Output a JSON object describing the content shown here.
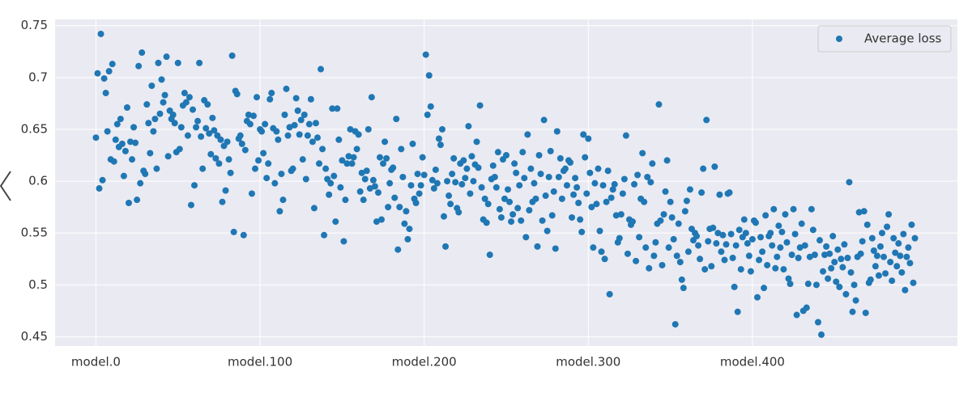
{
  "chart_data": {
    "type": "scatter",
    "color": "#1f77b4",
    "grid": true,
    "legend": "upper right",
    "xlim": [
      -24.9,
      524.9
    ],
    "ylim": [
      0.441,
      0.756
    ],
    "xticks": [
      {
        "value": 0,
        "label": "model.0"
      },
      {
        "value": 100,
        "label": "model.100"
      },
      {
        "value": 200,
        "label": "model.200"
      },
      {
        "value": 300,
        "label": "model.300"
      },
      {
        "value": 400,
        "label": "model.400"
      }
    ],
    "yticks": [
      0.45,
      0.5,
      0.55,
      0.6,
      0.65,
      0.7,
      0.75
    ],
    "series": [
      {
        "name": "Average loss",
        "color": "#1f77b4",
        "x": [
          0,
          1,
          2,
          3,
          4,
          5,
          6,
          7,
          8,
          9,
          10,
          11,
          12,
          13,
          14,
          15,
          16,
          17,
          18,
          19,
          20,
          21,
          22,
          23,
          24,
          25,
          26,
          27,
          28,
          29,
          30,
          31,
          32,
          33,
          34,
          35,
          36,
          37,
          38,
          39,
          40,
          41,
          42,
          43,
          44,
          45,
          46,
          47,
          48,
          49,
          50,
          51,
          52,
          53,
          54,
          55,
          56,
          57,
          58,
          59,
          60,
          61,
          62,
          63,
          64,
          65,
          66,
          67,
          68,
          69,
          70,
          71,
          72,
          73,
          74,
          75,
          76,
          77,
          78,
          79,
          80,
          81,
          82,
          83,
          84,
          85,
          86,
          87,
          88,
          89,
          90,
          91,
          92,
          93,
          94,
          95,
          96,
          97,
          98,
          99,
          100,
          101,
          102,
          103,
          104,
          105,
          106,
          107,
          108,
          109,
          110,
          111,
          112,
          113,
          114,
          115,
          116,
          117,
          118,
          119,
          120,
          121,
          122,
          123,
          124,
          125,
          126,
          127,
          128,
          129,
          130,
          131,
          132,
          133,
          134,
          135,
          136,
          137,
          138,
          139,
          140,
          141,
          142,
          143,
          144,
          145,
          146,
          147,
          148,
          149,
          150,
          151,
          152,
          153,
          154,
          155,
          156,
          157,
          158,
          159,
          160,
          161,
          162,
          163,
          164,
          165,
          166,
          167,
          168,
          169,
          170,
          171,
          172,
          173,
          174,
          175,
          176,
          177,
          178,
          179,
          180,
          181,
          182,
          183,
          184,
          185,
          186,
          187,
          188,
          189,
          190,
          191,
          192,
          193,
          194,
          195,
          196,
          197,
          198,
          199,
          200,
          201,
          202,
          203,
          204,
          205,
          206,
          207,
          208,
          209,
          210,
          211,
          212,
          213,
          214,
          215,
          216,
          217,
          218,
          219,
          220,
          221,
          222,
          223,
          224,
          225,
          226,
          227,
          228,
          229,
          230,
          231,
          232,
          233,
          234,
          235,
          236,
          237,
          238,
          239,
          240,
          241,
          242,
          243,
          244,
          245,
          246,
          247,
          248,
          249,
          250,
          251,
          252,
          253,
          254,
          255,
          256,
          257,
          258,
          259,
          260,
          261,
          262,
          263,
          264,
          265,
          266,
          267,
          268,
          269,
          270,
          271,
          272,
          273,
          274,
          275,
          276,
          277,
          278,
          279,
          280,
          281,
          282,
          283,
          284,
          285,
          286,
          287,
          288,
          289,
          290,
          291,
          292,
          293,
          294,
          295,
          296,
          297,
          298,
          299,
          300,
          301,
          302,
          303,
          304,
          305,
          306,
          307,
          308,
          309,
          310,
          311,
          312,
          313,
          314,
          315,
          316,
          317,
          318,
          319,
          320,
          321,
          322,
          323,
          324,
          325,
          326,
          327,
          328,
          329,
          330,
          331,
          332,
          333,
          334,
          335,
          336,
          337,
          338,
          339,
          340,
          341,
          342,
          343,
          344,
          345,
          346,
          347,
          348,
          349,
          350,
          351,
          352,
          353,
          354,
          355,
          356,
          357,
          358,
          359,
          360,
          361,
          362,
          363,
          364,
          365,
          366,
          367,
          368,
          369,
          370,
          371,
          372,
          373,
          374,
          375,
          376,
          377,
          378,
          379,
          380,
          381,
          382,
          383,
          384,
          385,
          386,
          387,
          388,
          389,
          390,
          391,
          392,
          393,
          394,
          395,
          396,
          397,
          398,
          399,
          400,
          401,
          402,
          403,
          404,
          405,
          406,
          407,
          408,
          409,
          410,
          411,
          412,
          413,
          414,
          415,
          416,
          417,
          418,
          419,
          420,
          421,
          422,
          423,
          424,
          425,
          426,
          427,
          428,
          429,
          430,
          431,
          432,
          433,
          434,
          435,
          436,
          437,
          438,
          439,
          440,
          441,
          442,
          443,
          444,
          445,
          446,
          447,
          448,
          449,
          450,
          451,
          452,
          453,
          454,
          455,
          456,
          457,
          458,
          459,
          460,
          461,
          462,
          463,
          464,
          465,
          466,
          467,
          468,
          469,
          470,
          471,
          472,
          473,
          474,
          475,
          476,
          477,
          478,
          479,
          480,
          481,
          482,
          483,
          484,
          485,
          486,
          487,
          488,
          489,
          490,
          491,
          492,
          493,
          494,
          495,
          496,
          497,
          498,
          499
        ],
        "values": [
          0.642,
          0.704,
          0.593,
          0.742,
          0.601,
          0.699,
          0.685,
          0.648,
          0.706,
          0.621,
          0.713,
          0.619,
          0.64,
          0.655,
          0.633,
          0.66,
          0.636,
          0.605,
          0.629,
          0.671,
          0.579,
          0.638,
          0.621,
          0.652,
          0.637,
          0.582,
          0.711,
          0.598,
          0.724,
          0.61,
          0.607,
          0.674,
          0.656,
          0.627,
          0.692,
          0.648,
          0.66,
          0.612,
          0.714,
          0.665,
          0.698,
          0.676,
          0.683,
          0.72,
          0.624,
          0.668,
          0.66,
          0.664,
          0.656,
          0.628,
          0.714,
          0.631,
          0.652,
          0.673,
          0.685,
          0.676,
          0.644,
          0.681,
          0.577,
          0.669,
          0.596,
          0.652,
          0.658,
          0.714,
          0.643,
          0.612,
          0.678,
          0.651,
          0.674,
          0.646,
          0.626,
          0.661,
          0.649,
          0.622,
          0.644,
          0.617,
          0.64,
          0.58,
          0.634,
          0.591,
          0.638,
          0.621,
          0.608,
          0.721,
          0.551,
          0.687,
          0.684,
          0.641,
          0.644,
          0.636,
          0.548,
          0.63,
          0.658,
          0.664,
          0.655,
          0.588,
          0.663,
          0.612,
          0.681,
          0.62,
          0.65,
          0.648,
          0.627,
          0.655,
          0.603,
          0.617,
          0.679,
          0.685,
          0.651,
          0.598,
          0.648,
          0.64,
          0.571,
          0.607,
          0.582,
          0.664,
          0.689,
          0.644,
          0.652,
          0.61,
          0.612,
          0.654,
          0.68,
          0.668,
          0.645,
          0.659,
          0.621,
          0.664,
          0.602,
          0.644,
          0.655,
          0.679,
          0.638,
          0.574,
          0.656,
          0.642,
          0.617,
          0.708,
          0.631,
          0.548,
          0.612,
          0.602,
          0.587,
          0.598,
          0.67,
          0.605,
          0.561,
          0.67,
          0.64,
          0.594,
          0.62,
          0.542,
          0.582,
          0.617,
          0.624,
          0.65,
          0.617,
          0.623,
          0.648,
          0.631,
          0.645,
          0.59,
          0.608,
          0.582,
          0.602,
          0.61,
          0.65,
          0.593,
          0.681,
          0.601,
          0.595,
          0.561,
          0.589,
          0.623,
          0.563,
          0.617,
          0.638,
          0.622,
          0.575,
          0.598,
          0.611,
          0.613,
          0.584,
          0.66,
          0.534,
          0.575,
          0.631,
          0.604,
          0.559,
          0.571,
          0.544,
          0.554,
          0.596,
          0.636,
          0.583,
          0.579,
          0.607,
          0.588,
          0.596,
          0.623,
          0.606,
          0.722,
          0.664,
          0.702,
          0.672,
          0.601,
          0.593,
          0.611,
          0.598,
          0.641,
          0.635,
          0.65,
          0.566,
          0.537,
          0.6,
          0.586,
          0.578,
          0.607,
          0.622,
          0.599,
          0.574,
          0.57,
          0.617,
          0.597,
          0.62,
          0.603,
          0.612,
          0.653,
          0.588,
          0.624,
          0.6,
          0.616,
          0.638,
          0.613,
          0.673,
          0.594,
          0.563,
          0.583,
          0.56,
          0.578,
          0.529,
          0.602,
          0.615,
          0.604,
          0.594,
          0.628,
          0.573,
          0.565,
          0.621,
          0.583,
          0.625,
          0.592,
          0.58,
          0.561,
          0.568,
          0.617,
          0.608,
          0.574,
          0.596,
          0.562,
          0.628,
          0.603,
          0.546,
          0.645,
          0.572,
          0.612,
          0.58,
          0.598,
          0.583,
          0.537,
          0.625,
          0.607,
          0.562,
          0.659,
          0.586,
          0.552,
          0.604,
          0.629,
          0.567,
          0.59,
          0.535,
          0.648,
          0.604,
          0.622,
          0.583,
          0.61,
          0.612,
          0.596,
          0.62,
          0.618,
          0.565,
          0.587,
          0.603,
          0.594,
          0.579,
          0.563,
          0.551,
          0.645,
          0.623,
          0.588,
          0.641,
          0.608,
          0.575,
          0.536,
          0.598,
          0.578,
          0.612,
          0.552,
          0.532,
          0.596,
          0.525,
          0.58,
          0.61,
          0.491,
          0.584,
          0.592,
          0.597,
          0.567,
          0.541,
          0.545,
          0.568,
          0.588,
          0.602,
          0.644,
          0.53,
          0.563,
          0.558,
          0.561,
          0.597,
          0.523,
          0.606,
          0.546,
          0.583,
          0.627,
          0.58,
          0.536,
          0.604,
          0.516,
          0.599,
          0.617,
          0.528,
          0.541,
          0.559,
          0.674,
          0.562,
          0.519,
          0.568,
          0.59,
          0.62,
          0.536,
          0.58,
          0.565,
          0.544,
          0.462,
          0.528,
          0.559,
          0.522,
          0.505,
          0.497,
          0.571,
          0.581,
          0.532,
          0.592,
          0.554,
          0.543,
          0.55,
          0.547,
          0.538,
          0.525,
          0.589,
          0.612,
          0.515,
          0.659,
          0.542,
          0.554,
          0.518,
          0.555,
          0.614,
          0.54,
          0.55,
          0.587,
          0.532,
          0.548,
          0.524,
          0.539,
          0.588,
          0.589,
          0.549,
          0.526,
          0.498,
          0.538,
          0.474,
          0.553,
          0.515,
          0.546,
          0.563,
          0.55,
          0.54,
          0.528,
          0.513,
          0.544,
          0.562,
          0.56,
          0.488,
          0.524,
          0.546,
          0.532,
          0.497,
          0.567,
          0.519,
          0.547,
          0.55,
          0.538,
          0.573,
          0.516,
          0.527,
          0.557,
          0.536,
          0.551,
          0.515,
          0.568,
          0.541,
          0.506,
          0.501,
          0.529,
          0.573,
          0.549,
          0.471,
          0.526,
          0.536,
          0.559,
          0.475,
          0.538,
          0.478,
          0.501,
          0.527,
          0.573,
          0.553,
          0.529,
          0.5,
          0.464,
          0.543,
          0.452,
          0.513,
          0.529,
          0.537,
          0.506,
          0.53,
          0.516,
          0.547,
          0.522,
          0.503,
          0.534,
          0.498,
          0.525,
          0.517,
          0.539,
          0.491,
          0.526,
          0.599,
          0.512,
          0.474,
          0.5,
          0.485,
          0.527,
          0.57,
          0.53,
          0.542,
          0.571,
          0.473,
          0.558,
          0.502,
          0.505,
          0.545,
          0.533,
          0.518,
          0.528,
          0.509,
          0.537,
          0.55,
          0.527,
          0.511,
          0.556,
          0.568,
          0.522,
          0.504,
          0.545,
          0.531,
          0.518,
          0.54,
          0.528,
          0.512,
          0.549,
          0.495,
          0.527,
          0.536,
          0.521,
          0.558,
          0.502,
          0.545
        ]
      }
    ]
  }
}
